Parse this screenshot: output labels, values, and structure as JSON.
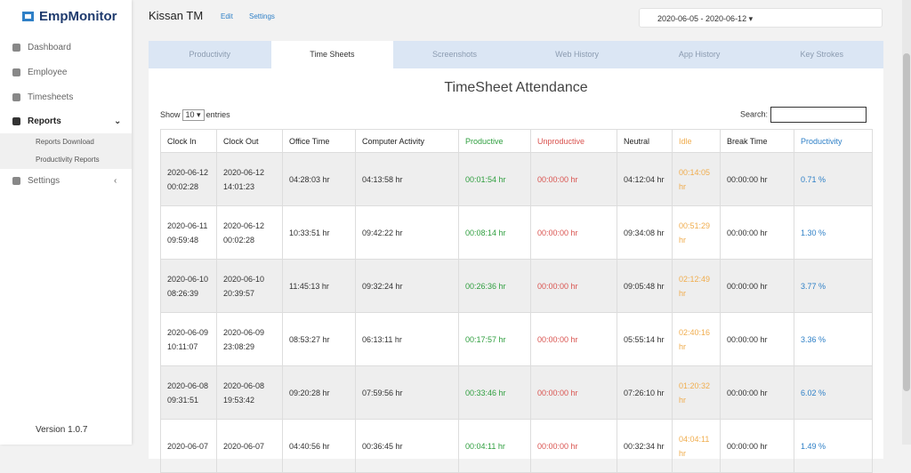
{
  "sidebar": {
    "logo": "EmpMonitor",
    "nav": [
      {
        "label": "Dashboard"
      },
      {
        "label": "Employee"
      },
      {
        "label": "Timesheets"
      },
      {
        "label": "Reports",
        "children": [
          "Reports Download",
          "Productivity Reports"
        ]
      },
      {
        "label": "Settings"
      }
    ],
    "version": "Version 1.0.7"
  },
  "header": {
    "name": "Kissan TM",
    "links": [
      "Edit",
      "Settings"
    ],
    "date_range": "2020-06-05 - 2020-06-12"
  },
  "tabs": [
    "Productivity",
    "Time Sheets",
    "Screenshots",
    "Web History",
    "App History",
    "Key Strokes"
  ],
  "report": {
    "title": "TimeSheet Attendance",
    "show": "Show",
    "page_size": "10",
    "entries": "entries",
    "search": "Search:"
  },
  "table": {
    "columns": [
      "Clock In",
      "Clock Out",
      "Office Time",
      "Computer Activity",
      "Productive",
      "Unproductive",
      "Neutral",
      "Idle",
      "Break Time",
      "Productivity"
    ],
    "rows": [
      [
        "2020-06-12 00:02:28",
        "2020-06-12 14:01:23",
        "04:28:03 hr",
        "04:13:58 hr",
        "00:01:54 hr",
        "00:00:00 hr",
        "04:12:04 hr",
        "00:14:05 hr",
        "00:00:00 hr",
        "0.71 %"
      ],
      [
        "2020-06-11 09:59:48",
        "2020-06-12 00:02:28",
        "10:33:51 hr",
        "09:42:22 hr",
        "00:08:14 hr",
        "00:00:00 hr",
        "09:34:08 hr",
        "00:51:29 hr",
        "00:00:00 hr",
        "1.30 %"
      ],
      [
        "2020-06-10 08:26:39",
        "2020-06-10 20:39:57",
        "11:45:13 hr",
        "09:32:24 hr",
        "00:26:36 hr",
        "00:00:00 hr",
        "09:05:48 hr",
        "02:12:49 hr",
        "00:00:00 hr",
        "3.77 %"
      ],
      [
        "2020-06-09 10:11:07",
        "2020-06-09 23:08:29",
        "08:53:27 hr",
        "06:13:11 hr",
        "00:17:57 hr",
        "00:00:00 hr",
        "05:55:14 hr",
        "02:40:16 hr",
        "00:00:00 hr",
        "3.36 %"
      ],
      [
        "2020-06-08 09:31:51",
        "2020-06-08 19:53:42",
        "09:20:28 hr",
        "07:59:56 hr",
        "00:33:46 hr",
        "00:00:00 hr",
        "07:26:10 hr",
        "01:20:32 hr",
        "00:00:00 hr",
        "6.02 %"
      ],
      [
        "2020-06-07",
        "2020-06-07",
        "04:40:56 hr",
        "00:36:45 hr",
        "00:04:11 hr",
        "00:00:00 hr",
        "00:32:34 hr",
        "04:04:11 hr",
        "00:00:00 hr",
        "1.49 %"
      ]
    ]
  }
}
